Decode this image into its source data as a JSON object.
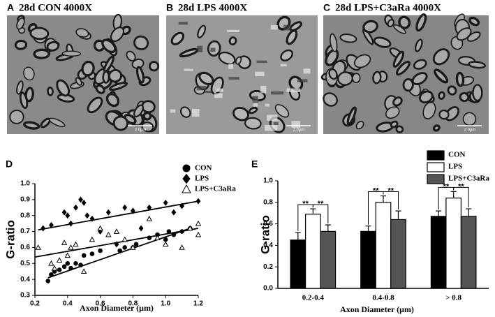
{
  "panels": [
    {
      "letter": "A",
      "title": "28d CON 4000X",
      "scale_bar": "2.0μm"
    },
    {
      "letter": "B",
      "title": "28d LPS 4000X",
      "scale_bar": "2.0μm"
    },
    {
      "letter": "C",
      "title": "28d LPS+C3aRa 4000X",
      "scale_bar": "2.0μm"
    }
  ],
  "chart_data": [
    {
      "type": "scatter",
      "panel": "D",
      "xlabel": "Axon Diameter (μm)",
      "ylabel": "G-ratio",
      "xlim": [
        0.2,
        1.2
      ],
      "ylim": [
        0.3,
        1.0
      ],
      "xticks": [
        0.2,
        0.4,
        0.6,
        0.8,
        {
          "value": 1,
          "label": "1.0"
        },
        1.2
      ],
      "yticks": [
        0.3,
        0.4,
        0.5,
        0.6,
        0.7,
        0.8,
        0.9,
        {
          "value": 1,
          "label": "1.0"
        }
      ],
      "series": [
        {
          "name": "CON",
          "color": "#000000",
          "marker": "circle",
          "filled": true,
          "x": [
            0.28,
            0.3,
            0.32,
            0.35,
            0.38,
            0.4,
            0.42,
            0.45,
            0.48,
            0.5,
            0.55,
            0.6,
            0.72,
            0.75,
            0.8,
            0.82,
            0.9,
            0.95,
            1.0,
            1.02,
            1.05,
            1.1,
            1.15
          ],
          "values": [
            0.39,
            0.43,
            0.45,
            0.46,
            0.48,
            0.5,
            0.47,
            0.5,
            0.49,
            0.55,
            0.56,
            0.58,
            0.58,
            0.6,
            0.6,
            0.62,
            0.66,
            0.68,
            0.65,
            0.7,
            0.68,
            0.7,
            0.72
          ],
          "fit_x": [
            0.28,
            1.15
          ],
          "fit_values": [
            0.41,
            0.72
          ]
        },
        {
          "name": "LPS",
          "color": "#000000",
          "marker": "diamond",
          "filled": true,
          "x": [
            0.25,
            0.3,
            0.38,
            0.4,
            0.42,
            0.45,
            0.48,
            0.5,
            0.52,
            0.55,
            0.6,
            0.65,
            0.7,
            0.75,
            0.8,
            0.85,
            0.9,
            1.0,
            1.05,
            1.1,
            1.2
          ],
          "values": [
            0.72,
            0.74,
            0.82,
            0.8,
            0.75,
            0.85,
            0.9,
            0.88,
            0.8,
            0.78,
            0.7,
            0.82,
            0.62,
            0.85,
            0.83,
            0.72,
            0.85,
            0.88,
            0.82,
            0.86,
            0.89
          ],
          "fit_x": [
            0.22,
            1.2
          ],
          "fit_values": [
            0.71,
            0.89
          ]
        },
        {
          "name": "LPS+C3aRa",
          "color": "#000000",
          "marker": "triangle",
          "filled": false,
          "x": [
            0.22,
            0.3,
            0.32,
            0.35,
            0.38,
            0.4,
            0.42,
            0.45,
            0.5,
            0.55,
            0.6,
            0.65,
            0.7,
            0.75,
            0.8,
            0.9,
            0.95,
            1.0,
            1.1,
            1.15,
            1.2,
            1.2
          ],
          "values": [
            0.6,
            0.5,
            0.47,
            0.52,
            0.63,
            0.55,
            0.6,
            0.62,
            0.45,
            0.65,
            0.72,
            0.68,
            0.7,
            0.65,
            0.6,
            0.78,
            0.66,
            0.62,
            0.6,
            0.72,
            0.75,
            0.68
          ],
          "fit_x": [
            0.2,
            1.2
          ],
          "fit_values": [
            0.54,
            0.72
          ]
        }
      ]
    },
    {
      "type": "bar",
      "panel": "E",
      "xlabel": "Axon Diameter (μm)",
      "ylabel": "G-ratio",
      "categories": [
        "0.2-0.4",
        "0.4-0.8",
        "> 0.8"
      ],
      "ylim": [
        0,
        1.0
      ],
      "yticks": [
        {
          "value": 0,
          "label": "0.0"
        },
        0.2,
        0.4,
        0.6,
        0.8,
        {
          "value": 1,
          "label": "1.0"
        }
      ],
      "series": [
        {
          "name": "CON",
          "color": "#000000",
          "values": [
            0.45,
            0.53,
            0.67
          ],
          "errors": [
            0.07,
            0.05,
            0.05
          ]
        },
        {
          "name": "LPS",
          "color": "#ffffff",
          "values": [
            0.69,
            0.8,
            0.84
          ],
          "errors": [
            0.05,
            0.06,
            0.06
          ]
        },
        {
          "name": "LPS+C3aRa",
          "color": "#555555",
          "values": [
            0.53,
            0.64,
            0.67
          ],
          "errors": [
            0.06,
            0.08,
            0.07
          ]
        }
      ],
      "significance": [
        [
          "**",
          "**"
        ],
        [
          "**",
          "**"
        ],
        [
          "**",
          "**"
        ]
      ]
    }
  ]
}
